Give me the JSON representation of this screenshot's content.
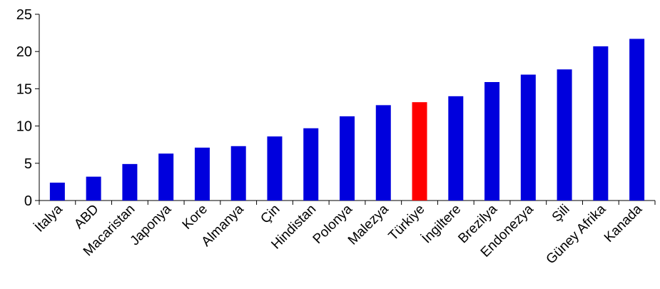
{
  "chart_data": {
    "type": "bar",
    "categories": [
      "İtalya",
      "ABD",
      "Macaristan",
      "Japonya",
      "Kore",
      "Almanya",
      "Çin",
      "Hindistan",
      "Polonya",
      "Malezya",
      "Türkiye",
      "İngiltere",
      "Brezilya",
      "Endonezya",
      "Şili",
      "Güney Afrika",
      "Kanada"
    ],
    "values": [
      2.4,
      3.2,
      4.9,
      6.3,
      7.1,
      7.3,
      8.6,
      9.7,
      11.3,
      12.8,
      13.2,
      14.0,
      15.9,
      16.9,
      17.6,
      20.7,
      21.7
    ],
    "highlight_index": 10,
    "colors": {
      "bar": "#0000dd",
      "highlight": "#ff0000",
      "axis": "#000000"
    },
    "title": "",
    "xlabel": "",
    "ylabel": "",
    "ylim": [
      0,
      25
    ],
    "yticks": [
      0,
      5,
      10,
      15,
      20,
      25
    ],
    "grid": false,
    "legend": false
  }
}
